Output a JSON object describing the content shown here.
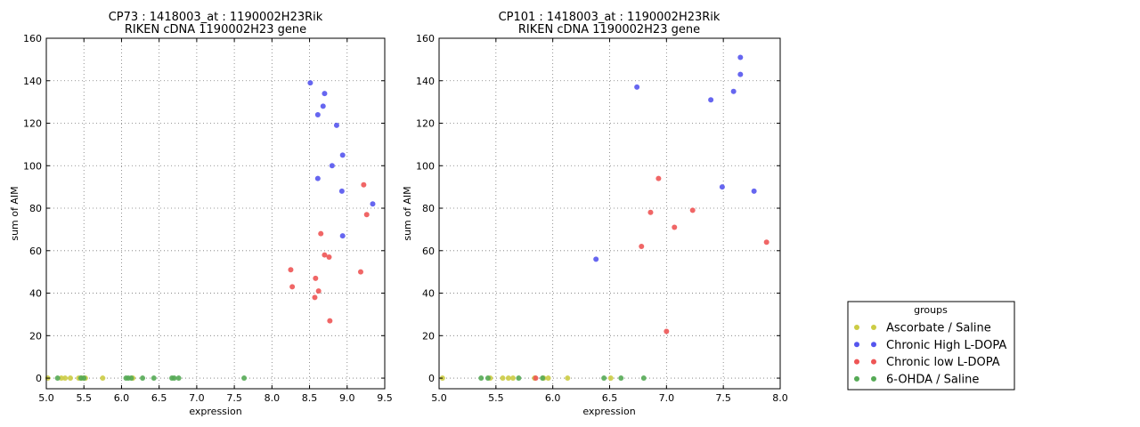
{
  "chart_data": [
    {
      "type": "scatter",
      "title_line1": "CP73 : 1418003_at : 1190002H23Rik",
      "title_line2": "RIKEN cDNA 1190002H23 gene",
      "xlabel": "expression",
      "ylabel": "sum of AIM",
      "xlim": [
        5.0,
        9.5
      ],
      "ylim": [
        -5,
        160
      ],
      "xticks": [
        5.0,
        5.5,
        6.0,
        6.5,
        7.0,
        7.5,
        8.0,
        8.5,
        9.0,
        9.5
      ],
      "xtick_labels": [
        "5.0",
        "5.5",
        "6.0",
        "6.5",
        "7.0",
        "7.5",
        "8.0",
        "8.5",
        "9.0",
        "9.5"
      ],
      "yticks": [
        0,
        20,
        40,
        60,
        80,
        100,
        120,
        140,
        160
      ],
      "ytick_labels": [
        "0",
        "20",
        "40",
        "60",
        "80",
        "100",
        "120",
        "140",
        "160"
      ],
      "grid": true,
      "series": [
        {
          "name": "Ascorbate / Saline",
          "color": "#cccc44",
          "x": [
            5.02,
            5.2,
            5.25,
            5.32,
            5.43,
            5.47,
            5.52,
            5.75,
            6.15
          ],
          "y": [
            0,
            0,
            0,
            0,
            0,
            0,
            0,
            0,
            0
          ]
        },
        {
          "name": "Chronic High L-DOPA",
          "color": "#5555ee",
          "x": [
            8.51,
            8.61,
            8.68,
            8.7,
            8.86,
            8.8,
            8.94,
            8.61,
            8.93,
            9.34,
            8.94
          ],
          "y": [
            139,
            124,
            128,
            134,
            119,
            100,
            105,
            94,
            88,
            82,
            67
          ]
        },
        {
          "name": "Chronic low L-DOPA",
          "color": "#ee5555",
          "x": [
            9.22,
            9.26,
            8.65,
            8.7,
            8.76,
            8.25,
            8.27,
            8.58,
            8.62,
            8.57,
            8.77,
            9.18
          ],
          "y": [
            91,
            77,
            68,
            58,
            57,
            51,
            43,
            47,
            41,
            38,
            27,
            50
          ]
        },
        {
          "name": "6-OHDA / Saline",
          "color": "#55aa55",
          "x": [
            5.15,
            5.46,
            5.5,
            6.06,
            6.09,
            6.13,
            6.28,
            6.43,
            6.67,
            6.7,
            6.76,
            7.63
          ],
          "y": [
            0,
            0,
            0,
            0,
            0,
            0,
            0,
            0,
            0,
            0,
            0,
            0
          ]
        }
      ]
    },
    {
      "type": "scatter",
      "title_line1": "CP101 : 1418003_at : 1190002H23Rik",
      "title_line2": "RIKEN cDNA 1190002H23 gene",
      "xlabel": "expression",
      "ylabel": "sum of AIM",
      "xlim": [
        5.0,
        8.0
      ],
      "ylim": [
        -5,
        160
      ],
      "xticks": [
        5.0,
        5.5,
        6.0,
        6.5,
        7.0,
        7.5,
        8.0
      ],
      "xtick_labels": [
        "5.0",
        "5.5",
        "6.0",
        "6.5",
        "7.0",
        "7.5",
        "8.0"
      ],
      "yticks": [
        0,
        20,
        40,
        60,
        80,
        100,
        120,
        140,
        160
      ],
      "ytick_labels": [
        "0",
        "20",
        "40",
        "60",
        "80",
        "100",
        "120",
        "140",
        "160"
      ],
      "grid": true,
      "series": [
        {
          "name": "Ascorbate / Saline",
          "color": "#cccc44",
          "x": [
            5.03,
            5.45,
            5.56,
            5.61,
            5.65,
            5.84,
            5.92,
            5.96,
            6.13,
            6.51
          ],
          "y": [
            0,
            0,
            0,
            0,
            0,
            0,
            0,
            0,
            0,
            0
          ]
        },
        {
          "name": "Chronic High L-DOPA",
          "color": "#5555ee",
          "x": [
            6.38,
            6.74,
            7.39,
            7.59,
            7.65,
            7.65,
            7.49,
            7.77
          ],
          "y": [
            56,
            137,
            131,
            135,
            143,
            151,
            90,
            88
          ]
        },
        {
          "name": "Chronic low L-DOPA",
          "color": "#ee5555",
          "x": [
            6.78,
            6.86,
            6.93,
            7.07,
            7.23,
            7.88,
            7.0,
            5.85
          ],
          "y": [
            62,
            78,
            94,
            71,
            79,
            64,
            22,
            0
          ]
        },
        {
          "name": "6-OHDA / Saline",
          "color": "#55aa55",
          "x": [
            5.37,
            5.43,
            5.7,
            5.91,
            6.45,
            6.6,
            6.8
          ],
          "y": [
            0,
            0,
            0,
            0,
            0,
            0,
            0
          ]
        }
      ]
    }
  ],
  "legend": {
    "title": "groups",
    "placement": "right",
    "entries": [
      {
        "label": "Ascorbate / Saline",
        "color": "#cccc44"
      },
      {
        "label": "Chronic High L-DOPA",
        "color": "#5555ee"
      },
      {
        "label": "Chronic low L-DOPA",
        "color": "#ee5555"
      },
      {
        "label": "6-OHDA / Saline",
        "color": "#55aa55"
      }
    ]
  }
}
